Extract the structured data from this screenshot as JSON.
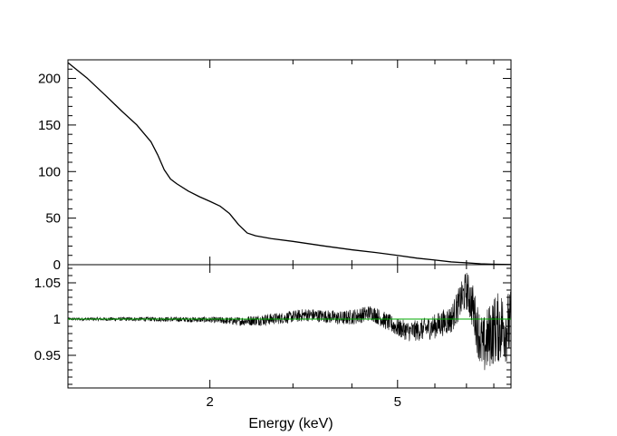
{
  "chart_data": [
    {
      "type": "line",
      "panel": "top",
      "xscale": "log",
      "xlim": [
        1.0,
        8.7
      ],
      "ylim": [
        0,
        220
      ],
      "ylabel": "",
      "y_ticks": [
        0,
        50,
        100,
        150,
        200
      ],
      "y_tick_labels": [
        "0",
        "50",
        "100",
        "150",
        "200"
      ],
      "series": [
        {
          "color": "#000000",
          "x": [
            1.0,
            1.1,
            1.2,
            1.3,
            1.4,
            1.5,
            1.55,
            1.6,
            1.65,
            1.7,
            1.8,
            1.9,
            2.0,
            2.1,
            2.2,
            2.3,
            2.4,
            2.5,
            2.7,
            3.0,
            3.5,
            4.0,
            4.5,
            5.0,
            5.5,
            6.0,
            6.5,
            7.0,
            7.5,
            8.0,
            8.7
          ],
          "y": [
            217,
            200,
            182,
            165,
            150,
            132,
            118,
            102,
            92,
            87,
            79,
            73,
            68,
            63,
            55,
            43,
            34,
            31,
            28,
            25,
            20,
            16,
            13,
            10,
            7,
            5,
            3,
            2,
            1,
            0.5,
            0.2
          ]
        }
      ]
    },
    {
      "type": "line",
      "panel": "bottom",
      "xscale": "log",
      "xlim": [
        1.0,
        8.7
      ],
      "ylim": [
        0.905,
        1.075
      ],
      "xlabel": "Energy (keV)",
      "x_ticks": [
        2,
        5
      ],
      "x_tick_labels": [
        "2",
        "5"
      ],
      "y_ticks": [
        0.95,
        1,
        1.05
      ],
      "y_tick_labels": [
        "0.95",
        "1",
        "1.05"
      ],
      "reference_line": {
        "y": 1.0,
        "color": "#00aa00"
      },
      "series": [
        {
          "color": "#000000",
          "envelope_x": [
            1.0,
            1.5,
            2.0,
            2.3,
            2.6,
            2.9,
            3.2,
            3.5,
            3.8,
            4.1,
            4.4,
            4.7,
            5.0,
            5.3,
            5.6,
            6.0,
            6.5,
            6.8,
            7.0,
            7.2,
            7.4,
            7.6,
            7.8,
            8.0,
            8.3,
            8.7
          ],
          "center": [
            1.0,
            1.0,
            0.999,
            0.997,
            0.999,
            1.002,
            1.006,
            1.004,
            1.001,
            1.004,
            1.009,
            0.998,
            0.988,
            0.983,
            0.985,
            0.99,
            1.0,
            1.025,
            1.04,
            1.02,
            0.985,
            0.96,
            0.975,
            0.985,
            0.99,
            0.99
          ],
          "spread": [
            0.002,
            0.003,
            0.004,
            0.006,
            0.008,
            0.008,
            0.009,
            0.009,
            0.01,
            0.011,
            0.011,
            0.012,
            0.013,
            0.014,
            0.015,
            0.017,
            0.02,
            0.024,
            0.028,
            0.032,
            0.036,
            0.042,
            0.045,
            0.048,
            0.05,
            0.05
          ]
        }
      ]
    }
  ]
}
